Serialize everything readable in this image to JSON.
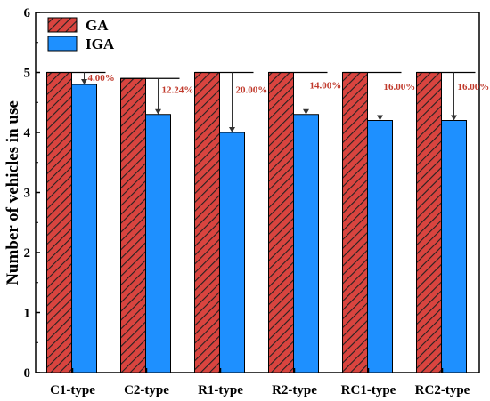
{
  "chart_data": {
    "type": "bar",
    "categories": [
      "C1-type",
      "C2-type",
      "R1-type",
      "R2-type",
      "RC1-type",
      "RC2-type"
    ],
    "series": [
      {
        "name": "GA",
        "values": [
          5.0,
          4.9,
          5.0,
          5.0,
          5.0,
          5.0
        ],
        "color": "#d9443f",
        "pattern": "hatched"
      },
      {
        "name": "IGA",
        "values": [
          4.8,
          4.3,
          4.0,
          4.3,
          4.2,
          4.2
        ],
        "color": "#1e90ff"
      }
    ],
    "annotations": [
      "4.00%",
      "12.24%",
      "20.00%",
      "14.00%",
      "16.00%",
      "16.00%"
    ],
    "annotation_color": "#c0392b",
    "xlabel": "",
    "ylabel": "Number of vehicles in use",
    "ylim": [
      0,
      6
    ],
    "yticks": [
      "0",
      "1",
      "2",
      "3",
      "4",
      "5",
      "6"
    ],
    "grid": false,
    "legend_position": "top-left"
  }
}
